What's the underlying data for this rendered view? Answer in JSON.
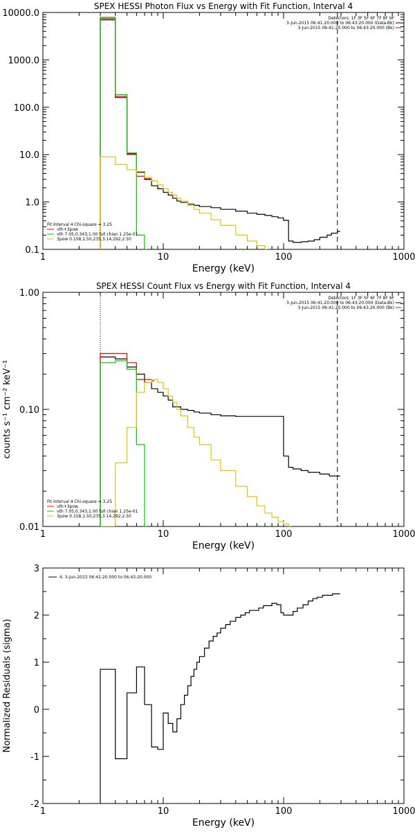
{
  "chart_data": [
    {
      "type": "line",
      "title": "SPEX HESSI Photon Flux vs Energy with Fit Function, Interval 4",
      "xlabel": "Energy (keV)",
      "ylabel": "",
      "xscale": "log",
      "yscale": "log",
      "xlim": [
        1,
        1000
      ],
      "ylim": [
        0.1,
        10000
      ],
      "xticks": [
        1,
        10,
        100,
        1000
      ],
      "xticklabels": [
        "1",
        "10",
        "100",
        "1000"
      ],
      "yticks": [
        0.1,
        1,
        10,
        100,
        1000,
        10000
      ],
      "yticklabels": [
        "0.1",
        "1.0",
        "10.0",
        "100.0",
        "1000.0",
        "10000.0"
      ],
      "vlines": [
        {
          "x": 3.0,
          "style": "dotted"
        },
        {
          "x": 280,
          "style": "dashed"
        }
      ],
      "info_lines": [
        "Detectors: 1F 3F 5F 6F 7F 8F 9F",
        "3-Jun-2015 06:41:20.000 to 06:43:20.000 (Data-Bk)",
        "3-Jun-2015 06:41:20.000 to 06:43:20.000 (Bk)"
      ],
      "fit_lines": [
        "Fit Interval 4   Chi-square = 3.25",
        "vth+3pow",
        "vth 7.05,0.343,1.00  full chian 1.25e-01",
        "3pow 0.158,1.50,235,3.14,292,2.50"
      ],
      "series": [
        {
          "name": "Data-Bk",
          "color": "#000000",
          "x": [
            3.0,
            4.0,
            5.0,
            6.0,
            7.0,
            8.0,
            9.0,
            10.0,
            11.0,
            12.0,
            13.0,
            14.0,
            16.0,
            18.0,
            20.0,
            25.0,
            30.0,
            40.0,
            50.0,
            60.0,
            70.0,
            80.0,
            90.0,
            100.0,
            110.0,
            120.0,
            140.0,
            160.0,
            180.0,
            200.0,
            230.0,
            250.0,
            280.0
          ],
          "y": [
            7000,
            160,
            10.5,
            4.3,
            3.0,
            2.2,
            1.9,
            1.6,
            1.4,
            1.2,
            1.05,
            0.98,
            0.9,
            0.85,
            0.8,
            0.76,
            0.7,
            0.64,
            0.58,
            0.55,
            0.52,
            0.49,
            0.46,
            0.41,
            0.15,
            0.14,
            0.145,
            0.15,
            0.16,
            0.18,
            0.2,
            0.22,
            0.24
          ]
        },
        {
          "name": "vth+3pow",
          "color": "#ff0000",
          "x": [
            3.0,
            4.0,
            5.0,
            6.0,
            7.0,
            8.0
          ],
          "y": [
            7500,
            170,
            10.0,
            3.5,
            3.1,
            2.8
          ]
        },
        {
          "name": "vth",
          "color": "#00cc00",
          "x": [
            3.0,
            4.0,
            5.0,
            6.0,
            7.0
          ],
          "y": [
            7900,
            185,
            10.8,
            0.2,
            0.1
          ]
        },
        {
          "name": "3pow",
          "color": "#e6c200",
          "x": [
            3.0,
            4.0,
            5.0,
            6.0,
            7.0,
            8.0,
            9.0,
            10.0,
            11.0,
            12.0,
            13.0,
            14.0,
            16.0,
            18.0,
            20.0,
            25.0,
            30.0,
            40.0,
            50.0,
            60.0,
            70.0
          ],
          "y": [
            9.0,
            6.2,
            4.8,
            4.1,
            3.3,
            2.8,
            2.3,
            1.9,
            1.6,
            1.4,
            1.2,
            1.05,
            0.85,
            0.7,
            0.58,
            0.42,
            0.32,
            0.2,
            0.15,
            0.12,
            0.1
          ]
        }
      ]
    },
    {
      "type": "line",
      "title": "SPEX HESSI Count Flux vs Energy with Fit Function, Interval 4",
      "xlabel": "Energy (keV)",
      "ylabel": "counts s⁻¹ cm⁻² keV⁻¹",
      "xscale": "log",
      "yscale": "log",
      "xlim": [
        1,
        1000
      ],
      "ylim": [
        0.01,
        1.0
      ],
      "xticks": [
        1,
        10,
        100,
        1000
      ],
      "xticklabels": [
        "1",
        "10",
        "100",
        "1000"
      ],
      "yticks": [
        0.01,
        0.1,
        1.0
      ],
      "yticklabels": [
        "0.01",
        "0.10",
        "1.00"
      ],
      "vlines": [
        {
          "x": 3.0,
          "style": "dotted"
        },
        {
          "x": 280,
          "style": "dashed"
        }
      ],
      "info_lines": [
        "Detectors: 1F 3F 5F 6F 7F 8F 9F",
        "3-Jun-2015 06:41:20.000 to 06:43:20.000 (Data-Bk)",
        "3-Jun-2015 06:41:20.000 to 06:43:20.000 (Bk)"
      ],
      "fit_lines": [
        "Fit Interval 4   Chi-square = 3.25",
        "vth+3pow",
        "vth 7.05,0.343,1.00  full chian 1.25e-01",
        "3pow 0.158,1.50,235,3.14,292,2.50"
      ],
      "series": [
        {
          "name": "Data-Bk",
          "color": "#000000",
          "x": [
            3.0,
            4.0,
            5.0,
            6.0,
            7.0,
            8.0,
            9.0,
            10.0,
            11.0,
            12.0,
            14.0,
            16.0,
            18.0,
            20.0,
            25.0,
            30.0,
            40.0,
            50.0,
            60.0,
            80.0,
            100.0,
            110.0,
            120.0,
            140.0,
            160.0,
            200.0,
            240.0,
            280.0
          ],
          "y": [
            0.28,
            0.27,
            0.23,
            0.2,
            0.17,
            0.15,
            0.14,
            0.13,
            0.12,
            0.105,
            0.1,
            0.098,
            0.095,
            0.093,
            0.09,
            0.088,
            0.087,
            0.087,
            0.087,
            0.087,
            0.04,
            0.032,
            0.031,
            0.03,
            0.029,
            0.028,
            0.027,
            0.027
          ]
        },
        {
          "name": "vth+3pow",
          "color": "#ff0000",
          "x": [
            3.0,
            4.0,
            5.0,
            6.0,
            7.0,
            8.0
          ],
          "y": [
            0.3,
            0.3,
            0.25,
            0.18,
            0.18,
            0.175
          ]
        },
        {
          "name": "vth",
          "color": "#00cc00",
          "x": [
            3.0,
            4.0,
            5.0,
            6.0,
            7.0
          ],
          "y": [
            0.25,
            0.26,
            0.22,
            0.05,
            0.01
          ]
        },
        {
          "name": "3pow",
          "color": "#e6c200",
          "x": [
            3.0,
            4.0,
            5.0,
            6.0,
            7.0,
            8.0,
            9.0,
            10.0,
            11.0,
            12.0,
            13.0,
            14.0,
            16.0,
            18.0,
            20.0,
            25.0,
            30.0,
            40.0,
            50.0,
            60.0,
            70.0,
            80.0,
            90.0,
            100.0,
            110.0
          ],
          "y": [
            0.01,
            0.035,
            0.07,
            0.14,
            0.17,
            0.18,
            0.17,
            0.15,
            0.13,
            0.115,
            0.1,
            0.088,
            0.07,
            0.058,
            0.05,
            0.037,
            0.03,
            0.022,
            0.018,
            0.015,
            0.013,
            0.012,
            0.011,
            0.0105,
            0.01
          ]
        }
      ]
    },
    {
      "type": "line",
      "title": "",
      "xlabel": "Energy (keV)",
      "ylabel": "Normalized Residuals (sigma)",
      "xscale": "log",
      "yscale": "linear",
      "xlim": [
        1,
        1000
      ],
      "ylim": [
        -2,
        3
      ],
      "xticks": [
        1,
        10,
        100,
        1000
      ],
      "xticklabels": [
        "1",
        "10",
        "100",
        "1000"
      ],
      "yticks": [
        -2,
        -1,
        0,
        1,
        2,
        3
      ],
      "yticklabels": [
        "-2",
        "-1",
        "0",
        "1",
        "2",
        "3"
      ],
      "legend": "4, 3-Jun-2015 06:41:20.000 to 06:43:20.000",
      "series": [
        {
          "name": "4, 3-Jun-2015 06:41:20.000 to 06:43:20.000",
          "color": "#000000",
          "x": [
            3.0,
            4.0,
            5.0,
            6.0,
            7.0,
            8.0,
            9.0,
            10.0,
            11.0,
            12.0,
            13.0,
            14.0,
            15.0,
            16.0,
            17.0,
            18.0,
            19.0,
            20.0,
            22.0,
            24.0,
            26.0,
            28.0,
            30.0,
            33.0,
            36.0,
            40.0,
            44.0,
            48.0,
            52.0,
            57.0,
            62.0,
            68.0,
            74.0,
            80.0,
            88.0,
            95.0,
            100.0,
            110.0,
            120.0,
            130.0,
            145.0,
            160.0,
            175.0,
            190.0,
            210.0,
            230.0,
            255.0,
            280.0
          ],
          "y": [
            0.85,
            -1.05,
            0.35,
            0.9,
            0.1,
            -0.8,
            -0.85,
            -0.08,
            -0.3,
            -0.48,
            -0.2,
            0.1,
            0.3,
            0.5,
            0.7,
            0.85,
            1.0,
            1.12,
            1.3,
            1.45,
            1.55,
            1.62,
            1.72,
            1.8,
            1.87,
            1.95,
            2.0,
            2.05,
            2.1,
            2.1,
            2.15,
            2.2,
            2.2,
            2.25,
            2.22,
            2.05,
            2.0,
            2.0,
            2.08,
            2.15,
            2.22,
            2.3,
            2.35,
            2.38,
            2.42,
            2.42,
            2.45,
            2.45
          ]
        }
      ]
    }
  ]
}
